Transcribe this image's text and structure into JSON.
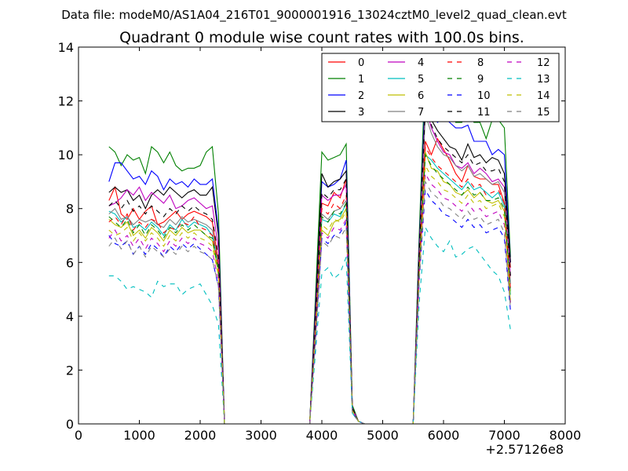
{
  "header": {
    "subtitle": "Data file: modeM0/AS1A04_216T01_9000001916_13024cztM0_level2_quad_clean.evt",
    "title": "Quadrant 0 module wise count rates with 100.0s bins."
  },
  "chart_data": {
    "type": "line",
    "title": "Quadrant 0 module wise count rates with 100.0s bins.",
    "subtitle": "Data file: modeM0/AS1A04_216T01_9000001916_13024cztM0_level2_quad_clean.evt",
    "x_offset_label": "+2.57126e8",
    "xlim": [
      0,
      8000
    ],
    "ylim": [
      0,
      14
    ],
    "x_ticks": [
      0,
      1000,
      2000,
      3000,
      4000,
      5000,
      6000,
      7000,
      8000
    ],
    "y_ticks": [
      0,
      2,
      4,
      6,
      8,
      10,
      12,
      14
    ],
    "legend_position": "top-right",
    "legend_columns": 4,
    "x": [
      500,
      600,
      700,
      800,
      900,
      1000,
      1100,
      1200,
      1300,
      1400,
      1500,
      1600,
      1700,
      1800,
      1900,
      2000,
      2100,
      2200,
      2300,
      2400,
      2500,
      2600,
      2700,
      2800,
      2900,
      3000,
      3100,
      3200,
      3300,
      3400,
      3500,
      3600,
      3700,
      3800,
      3900,
      4000,
      4100,
      4200,
      4300,
      4400,
      4500,
      4600,
      4700,
      4800,
      4900,
      5000,
      5100,
      5200,
      5300,
      5400,
      5500,
      5600,
      5700,
      5800,
      5900,
      6000,
      6100,
      6200,
      6300,
      6400,
      6500,
      6600,
      6700,
      6800,
      6900,
      7000,
      7100
    ],
    "series": [
      {
        "name": "0",
        "color": "#ff0000",
        "dash": "solid",
        "values": [
          8.3,
          8.8,
          7.8,
          7.6,
          8.0,
          7.6,
          7.9,
          8.1,
          7.4,
          7.5,
          7.7,
          7.9,
          7.6,
          7.8,
          7.9,
          7.8,
          7.7,
          7.5,
          6.0,
          0,
          0,
          0,
          0,
          0,
          0,
          0,
          0,
          0,
          0,
          0,
          0,
          0,
          0,
          0,
          4.0,
          8.2,
          8.1,
          8.6,
          8.4,
          9.1,
          0.6,
          0.1,
          0,
          0,
          0,
          0,
          0,
          0,
          0,
          0,
          0,
          6.0,
          10.5,
          10.0,
          10.6,
          10.2,
          9.8,
          9.3,
          9.0,
          9.6,
          9.2,
          9.1,
          9.1,
          8.9,
          8.9,
          8.2,
          5.8
        ]
      },
      {
        "name": "1",
        "color": "#008000",
        "dash": "solid",
        "values": [
          10.3,
          10.1,
          9.6,
          10.0,
          9.8,
          9.9,
          9.3,
          10.3,
          10.1,
          9.7,
          10.1,
          9.6,
          9.4,
          9.5,
          9.5,
          9.6,
          10.1,
          10.3,
          7.8,
          0,
          0,
          0,
          0,
          0,
          0,
          0,
          0,
          0,
          0,
          0,
          0,
          0,
          0,
          0,
          5.0,
          10.1,
          9.8,
          9.9,
          10.0,
          10.4,
          0.7,
          0.1,
          0,
          0,
          0,
          0,
          0,
          0,
          0,
          0,
          0,
          7.0,
          13.3,
          12.7,
          12.6,
          12.0,
          12.3,
          11.2,
          11.2,
          11.7,
          11.2,
          11.2,
          10.6,
          11.3,
          11.3,
          11.0,
          6.2
        ]
      },
      {
        "name": "2",
        "color": "#0000ff",
        "dash": "solid",
        "values": [
          9.0,
          9.7,
          9.7,
          9.4,
          9.1,
          9.2,
          8.9,
          9.4,
          9.2,
          8.7,
          9.1,
          8.9,
          9.0,
          8.8,
          9.1,
          8.9,
          8.9,
          9.1,
          7.2,
          0,
          0,
          0,
          0,
          0,
          0,
          0,
          0,
          0,
          0,
          0,
          0,
          0,
          0,
          0,
          4.6,
          9.0,
          8.8,
          8.9,
          9.1,
          9.8,
          0.6,
          0.1,
          0,
          0,
          0,
          0,
          0,
          0,
          0,
          0,
          0,
          6.6,
          12.4,
          11.7,
          11.2,
          11.4,
          11.2,
          11.0,
          11.0,
          11.1,
          10.5,
          10.5,
          10.5,
          10.0,
          10.2,
          10.0,
          6.0
        ]
      },
      {
        "name": "3",
        "color": "#000000",
        "dash": "solid",
        "values": [
          8.6,
          8.8,
          8.6,
          8.7,
          8.3,
          8.5,
          8.0,
          8.5,
          8.7,
          8.5,
          8.8,
          8.6,
          8.4,
          8.6,
          8.7,
          8.5,
          8.5,
          8.8,
          7.0,
          0,
          0,
          0,
          0,
          0,
          0,
          0,
          0,
          0,
          0,
          0,
          0,
          0,
          0,
          0,
          4.5,
          9.3,
          8.8,
          9.0,
          9.1,
          9.4,
          0.6,
          0.1,
          0,
          0,
          0,
          0,
          0,
          0,
          0,
          0,
          0,
          6.5,
          12.0,
          11.3,
          10.9,
          10.6,
          10.3,
          10.2,
          9.8,
          10.4,
          9.9,
          10.0,
          9.7,
          9.9,
          9.8,
          9.3,
          6.0
        ]
      },
      {
        "name": "4",
        "color": "#bf00bf",
        "dash": "solid",
        "values": [
          8.1,
          8.2,
          8.4,
          8.7,
          8.5,
          8.8,
          8.3,
          8.6,
          8.4,
          8.2,
          8.5,
          8.0,
          8.1,
          8.3,
          8.4,
          8.2,
          8.0,
          8.1,
          6.5,
          0,
          0,
          0,
          0,
          0,
          0,
          0,
          0,
          0,
          0,
          0,
          0,
          0,
          0,
          0,
          4.2,
          8.5,
          8.3,
          8.5,
          8.5,
          8.9,
          0.6,
          0.1,
          0,
          0,
          0,
          0,
          0,
          0,
          0,
          0,
          0,
          6.3,
          11.8,
          11.0,
          10.5,
          10.1,
          10.0,
          9.6,
          9.5,
          9.7,
          9.3,
          9.5,
          9.3,
          9.0,
          9.1,
          8.8,
          5.5
        ]
      },
      {
        "name": "5",
        "color": "#00bfbf",
        "dash": "solid",
        "values": [
          7.9,
          7.8,
          7.5,
          7.7,
          7.3,
          7.4,
          7.2,
          7.5,
          7.3,
          7.0,
          7.4,
          7.2,
          7.6,
          7.3,
          7.5,
          7.4,
          7.3,
          7.0,
          5.8,
          0,
          0,
          0,
          0,
          0,
          0,
          0,
          0,
          0,
          0,
          0,
          0,
          0,
          0,
          0,
          3.8,
          7.6,
          7.5,
          7.8,
          7.7,
          8.2,
          0.5,
          0.1,
          0,
          0,
          0,
          0,
          0,
          0,
          0,
          0,
          0,
          5.8,
          10.0,
          9.8,
          9.5,
          9.3,
          9.1,
          8.9,
          8.7,
          9.0,
          8.7,
          8.8,
          8.6,
          8.4,
          8.6,
          8.1,
          4.8
        ]
      },
      {
        "name": "6",
        "color": "#bfbf00",
        "dash": "solid",
        "values": [
          7.6,
          7.4,
          7.3,
          7.5,
          7.0,
          7.2,
          6.9,
          7.3,
          7.1,
          6.8,
          7.2,
          7.0,
          7.3,
          7.1,
          7.2,
          7.2,
          7.0,
          6.8,
          5.6,
          0,
          0,
          0,
          0,
          0,
          0,
          0,
          0,
          0,
          0,
          0,
          0,
          0,
          0,
          0,
          3.6,
          7.2,
          7.0,
          7.5,
          7.6,
          8.0,
          0.5,
          0.1,
          0,
          0,
          0,
          0,
          0,
          0,
          0,
          0,
          0,
          5.6,
          10.1,
          9.5,
          9.4,
          9.0,
          8.9,
          8.6,
          8.5,
          8.7,
          8.4,
          8.6,
          8.3,
          8.2,
          8.3,
          7.9,
          4.5
        ]
      },
      {
        "name": "7",
        "color": "#808080",
        "dash": "solid",
        "values": [
          7.8,
          8.0,
          7.6,
          7.7,
          7.4,
          7.6,
          7.5,
          7.6,
          7.4,
          7.3,
          7.6,
          7.4,
          7.7,
          7.5,
          7.6,
          7.5,
          7.4,
          7.2,
          5.9,
          0,
          0,
          0,
          0,
          0,
          0,
          0,
          0,
          0,
          0,
          0,
          0,
          0,
          0,
          0,
          3.9,
          7.8,
          7.6,
          7.9,
          8.0,
          8.3,
          0.5,
          0.1,
          0,
          0,
          0,
          0,
          0,
          0,
          0,
          0,
          0,
          5.9,
          11.5,
          10.8,
          10.3,
          10.0,
          9.9,
          9.6,
          9.4,
          9.6,
          9.2,
          9.3,
          9.1,
          8.9,
          9.0,
          8.6,
          5.2
        ]
      },
      {
        "name": "8",
        "color": "#ff0000",
        "dash": "dashed",
        "values": [
          7.5,
          7.7,
          7.4,
          7.8,
          7.2,
          7.5,
          7.3,
          7.6,
          7.5,
          7.1,
          7.3,
          7.2,
          7.5,
          7.4,
          7.7,
          7.3,
          7.2,
          7.0,
          5.8,
          0,
          0,
          0,
          0,
          0,
          0,
          0,
          0,
          0,
          0,
          0,
          0,
          0,
          0,
          0,
          3.7,
          8.0,
          7.8,
          8.2,
          8.0,
          8.5,
          0.5,
          0.1,
          0,
          0,
          0,
          0,
          0,
          0,
          0,
          0,
          0,
          5.9,
          10.3,
          9.9,
          9.6,
          9.4,
          9.2,
          9.0,
          8.8,
          9.1,
          8.8,
          8.9,
          8.5,
          8.6,
          8.7,
          8.2,
          5.0
        ]
      },
      {
        "name": "9",
        "color": "#008000",
        "dash": "dashed",
        "values": [
          7.7,
          7.5,
          7.3,
          7.6,
          7.1,
          7.4,
          7.0,
          7.4,
          7.2,
          6.9,
          7.3,
          7.1,
          7.4,
          7.2,
          7.4,
          7.2,
          7.0,
          6.9,
          5.7,
          0,
          0,
          0,
          0,
          0,
          0,
          0,
          0,
          0,
          0,
          0,
          0,
          0,
          0,
          0,
          3.6,
          7.7,
          7.5,
          7.9,
          7.8,
          8.2,
          0.5,
          0.1,
          0,
          0,
          0,
          0,
          0,
          0,
          0,
          0,
          0,
          5.7,
          10.0,
          9.6,
          9.3,
          9.1,
          8.9,
          8.7,
          8.5,
          8.8,
          8.5,
          8.6,
          8.3,
          8.3,
          8.4,
          8.0,
          4.8
        ]
      },
      {
        "name": "10",
        "color": "#0000ff",
        "dash": "dashed",
        "values": [
          7.0,
          6.7,
          6.6,
          6.8,
          6.3,
          6.6,
          6.3,
          6.7,
          6.5,
          6.2,
          6.6,
          6.4,
          6.7,
          6.5,
          6.7,
          6.5,
          6.3,
          6.1,
          5.1,
          0,
          0,
          0,
          0,
          0,
          0,
          0,
          0,
          0,
          0,
          0,
          0,
          0,
          0,
          0,
          3.2,
          6.9,
          6.7,
          7.0,
          7.1,
          7.5,
          0.4,
          0.1,
          0,
          0,
          0,
          0,
          0,
          0,
          0,
          0,
          0,
          5.3,
          8.7,
          8.3,
          8.1,
          7.8,
          7.7,
          7.5,
          7.3,
          7.6,
          7.3,
          7.4,
          7.1,
          7.2,
          7.3,
          6.9,
          4.2
        ]
      },
      {
        "name": "11",
        "color": "#000000",
        "dash": "dashed",
        "values": [
          8.1,
          8.3,
          8.0,
          8.3,
          7.9,
          8.1,
          7.8,
          8.1,
          7.9,
          7.7,
          8.0,
          7.8,
          8.1,
          7.9,
          8.1,
          7.9,
          7.8,
          7.6,
          6.2,
          0,
          0,
          0,
          0,
          0,
          0,
          0,
          0,
          0,
          0,
          0,
          0,
          0,
          0,
          0,
          4.0,
          8.6,
          8.4,
          8.7,
          8.7,
          9.1,
          0.6,
          0.1,
          0,
          0,
          0,
          0,
          0,
          0,
          0,
          0,
          0,
          6.2,
          11.8,
          11.1,
          10.6,
          10.3,
          10.1,
          9.9,
          9.7,
          10.0,
          9.6,
          9.7,
          9.4,
          9.4,
          9.5,
          9.0,
          5.5
        ]
      },
      {
        "name": "12",
        "color": "#bf00bf",
        "dash": "dashed",
        "values": [
          6.9,
          7.2,
          6.8,
          7.0,
          6.6,
          6.9,
          6.5,
          6.9,
          6.7,
          6.4,
          6.8,
          6.6,
          6.9,
          6.7,
          6.9,
          6.7,
          6.6,
          6.4,
          5.3,
          0,
          0,
          0,
          0,
          0,
          0,
          0,
          0,
          0,
          0,
          0,
          0,
          0,
          0,
          0,
          3.4,
          7.1,
          6.9,
          7.3,
          7.2,
          7.6,
          0.5,
          0.1,
          0,
          0,
          0,
          0,
          0,
          0,
          0,
          0,
          0,
          5.5,
          9.3,
          8.9,
          8.7,
          8.4,
          8.3,
          8.1,
          7.9,
          8.2,
          7.9,
          8.0,
          7.7,
          7.8,
          7.9,
          7.4,
          4.5
        ]
      },
      {
        "name": "13",
        "color": "#00bfbf",
        "dash": "dashed",
        "values": [
          5.5,
          5.5,
          5.3,
          5.0,
          5.1,
          5.0,
          4.9,
          4.7,
          5.3,
          5.1,
          5.2,
          5.2,
          4.8,
          5.0,
          5.1,
          5.2,
          4.8,
          4.4,
          3.7,
          0,
          0,
          0,
          0,
          0,
          0,
          0,
          0,
          0,
          0,
          0,
          0,
          0,
          0,
          0,
          2.8,
          5.6,
          5.8,
          5.4,
          5.6,
          6.2,
          0.4,
          0.1,
          0,
          0,
          0,
          0,
          0,
          0,
          0,
          0,
          0,
          4.5,
          7.3,
          6.9,
          6.6,
          6.4,
          6.8,
          6.2,
          6.3,
          6.5,
          6.6,
          6.3,
          6.0,
          5.7,
          5.5,
          4.9,
          3.5
        ]
      },
      {
        "name": "14",
        "color": "#bfbf00",
        "dash": "dashed",
        "values": [
          7.2,
          7.0,
          7.1,
          7.3,
          6.8,
          7.1,
          6.8,
          7.1,
          6.9,
          6.6,
          7.0,
          6.8,
          7.1,
          6.9,
          7.1,
          6.9,
          6.8,
          6.6,
          5.5,
          0,
          0,
          0,
          0,
          0,
          0,
          0,
          0,
          0,
          0,
          0,
          0,
          0,
          0,
          0,
          3.5,
          7.4,
          7.2,
          7.6,
          7.5,
          7.9,
          0.5,
          0.1,
          0,
          0,
          0,
          0,
          0,
          0,
          0,
          0,
          0,
          5.6,
          9.6,
          9.2,
          9.0,
          8.7,
          8.6,
          8.4,
          8.2,
          8.5,
          8.2,
          8.3,
          8.0,
          8.1,
          8.2,
          7.7,
          4.6
        ]
      },
      {
        "name": "15",
        "color": "#808080",
        "dash": "dashed",
        "values": [
          6.6,
          6.9,
          6.5,
          6.8,
          6.3,
          6.6,
          6.2,
          6.6,
          6.4,
          6.2,
          6.5,
          6.3,
          6.6,
          6.4,
          6.6,
          6.4,
          6.3,
          6.1,
          5.1,
          0,
          0,
          0,
          0,
          0,
          0,
          0,
          0,
          0,
          0,
          0,
          0,
          0,
          0,
          0,
          3.3,
          6.8,
          6.6,
          7.0,
          6.9,
          7.3,
          0.4,
          0.1,
          0,
          0,
          0,
          0,
          0,
          0,
          0,
          0,
          0,
          5.3,
          9.0,
          8.6,
          8.4,
          8.1,
          8.0,
          7.8,
          7.6,
          7.9,
          7.6,
          7.7,
          7.4,
          7.5,
          7.6,
          7.1,
          4.3
        ]
      }
    ]
  }
}
